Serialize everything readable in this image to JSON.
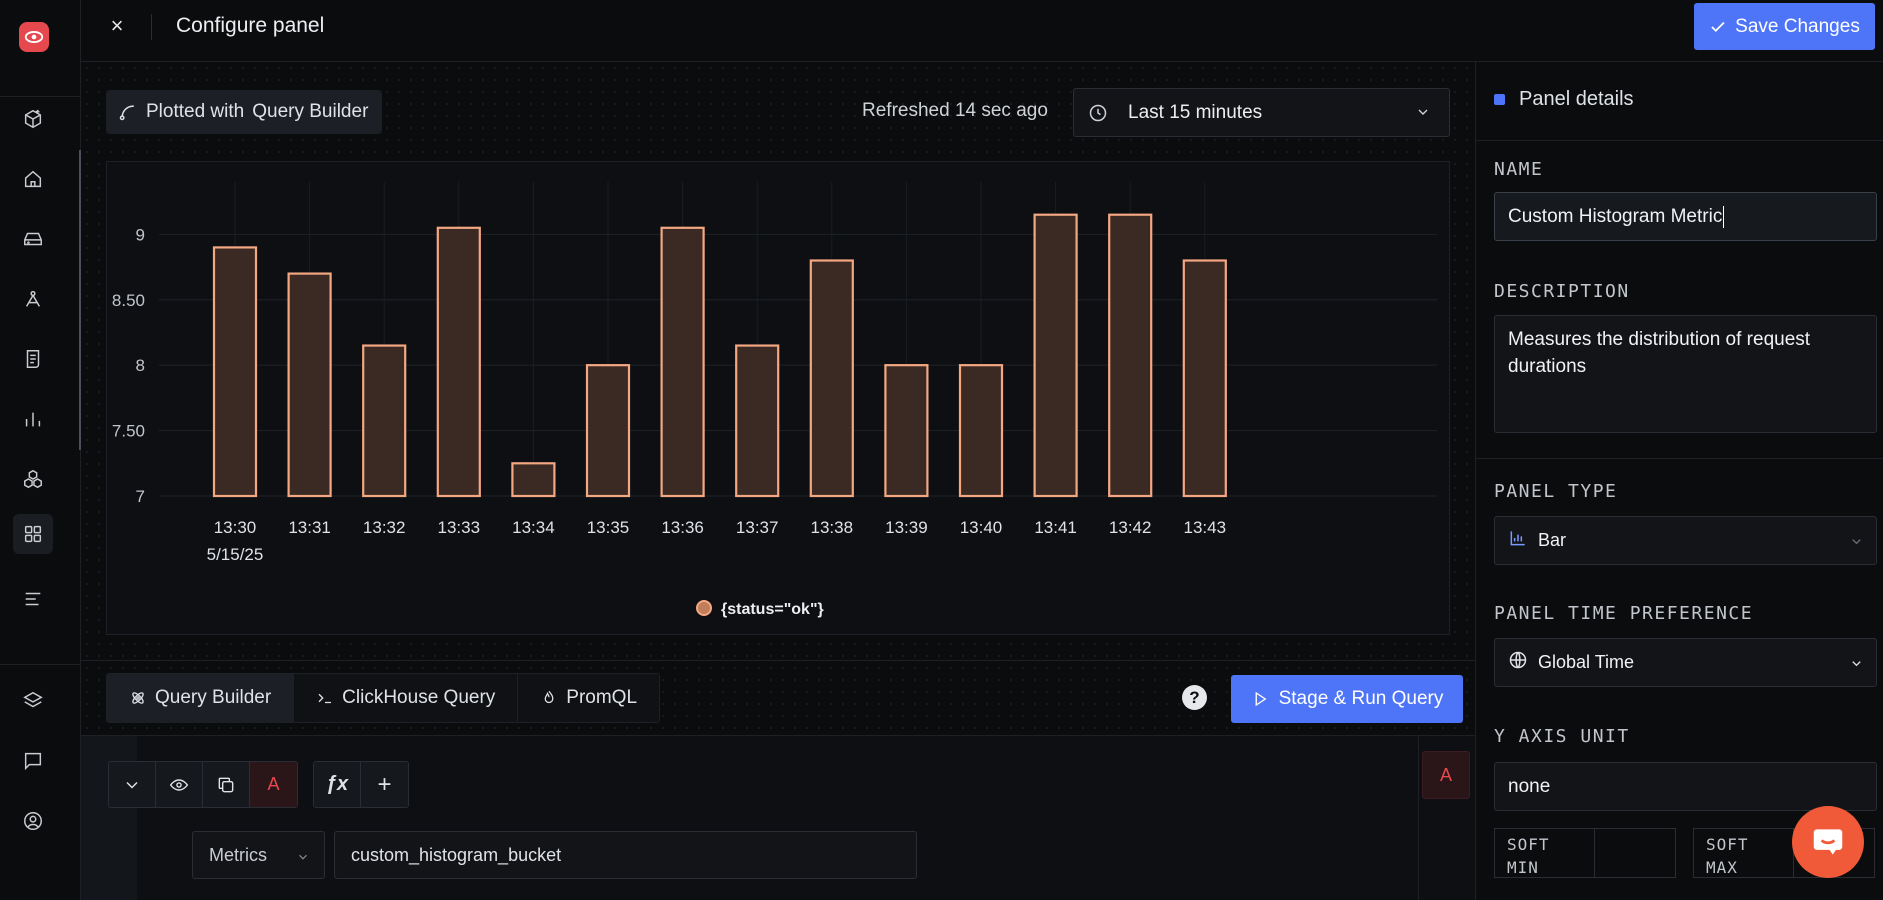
{
  "header": {
    "title": "Configure panel",
    "save_label": "Save Changes"
  },
  "toolbar": {
    "plotted_prefix": "Plotted with",
    "plotted_source": "Query Builder",
    "refreshed": "Refreshed 14 sec ago",
    "time_range": "Last 15 minutes"
  },
  "chart_data": {
    "type": "bar",
    "categories": [
      "13:30",
      "13:31",
      "13:32",
      "13:33",
      "13:34",
      "13:35",
      "13:36",
      "13:37",
      "13:38",
      "13:39",
      "13:40",
      "13:41",
      "13:42",
      "13:43"
    ],
    "first_date_label": "5/15/25",
    "series": [
      {
        "name": "{status=\"ok\"}",
        "values": [
          8.9,
          8.7,
          8.15,
          9.05,
          7.25,
          8.0,
          9.05,
          8.15,
          8.8,
          8.0,
          8.0,
          9.15,
          9.15,
          8.8
        ]
      }
    ],
    "y_ticks": [
      "9",
      "8.50",
      "8",
      "7.50",
      "7"
    ],
    "ylim": [
      7,
      9.4
    ],
    "grid": true,
    "legend_position": "bottom-center",
    "bar_fill": "#3b2a24",
    "bar_stroke": "#f4a882"
  },
  "query_tabs": [
    {
      "label": "Query Builder",
      "icon": "atom-icon",
      "active": true
    },
    {
      "label": "ClickHouse Query",
      "icon": "terminal-icon",
      "active": false
    },
    {
      "label": "PromQL",
      "icon": "flame-icon",
      "active": false
    }
  ],
  "help_label": "?",
  "run_label": "Stage & Run Query",
  "query": {
    "letter": "A",
    "fx_label": "ƒx",
    "add_label": "+",
    "data_source": "Metrics",
    "metric_name": "custom_histogram_bucket"
  },
  "panel": {
    "heading": "Panel details",
    "name_label": "NAME",
    "name_value": "Custom Histogram Metric",
    "description_label": "DESCRIPTION",
    "description_value": "Measures the distribution of request durations",
    "panel_type_label": "PANEL TYPE",
    "panel_type_value": "Bar",
    "time_pref_label": "PANEL TIME PREFERENCE",
    "time_pref_value": "Global Time",
    "y_axis_label": "Y AXIS UNIT",
    "y_axis_value": "none",
    "soft_min_label": "SOFT MIN",
    "soft_max_label": "SOFT MAX"
  },
  "colors": {
    "accent": "#4e74f8",
    "query_letter": "#e5484d",
    "chat": "#f05a38"
  }
}
